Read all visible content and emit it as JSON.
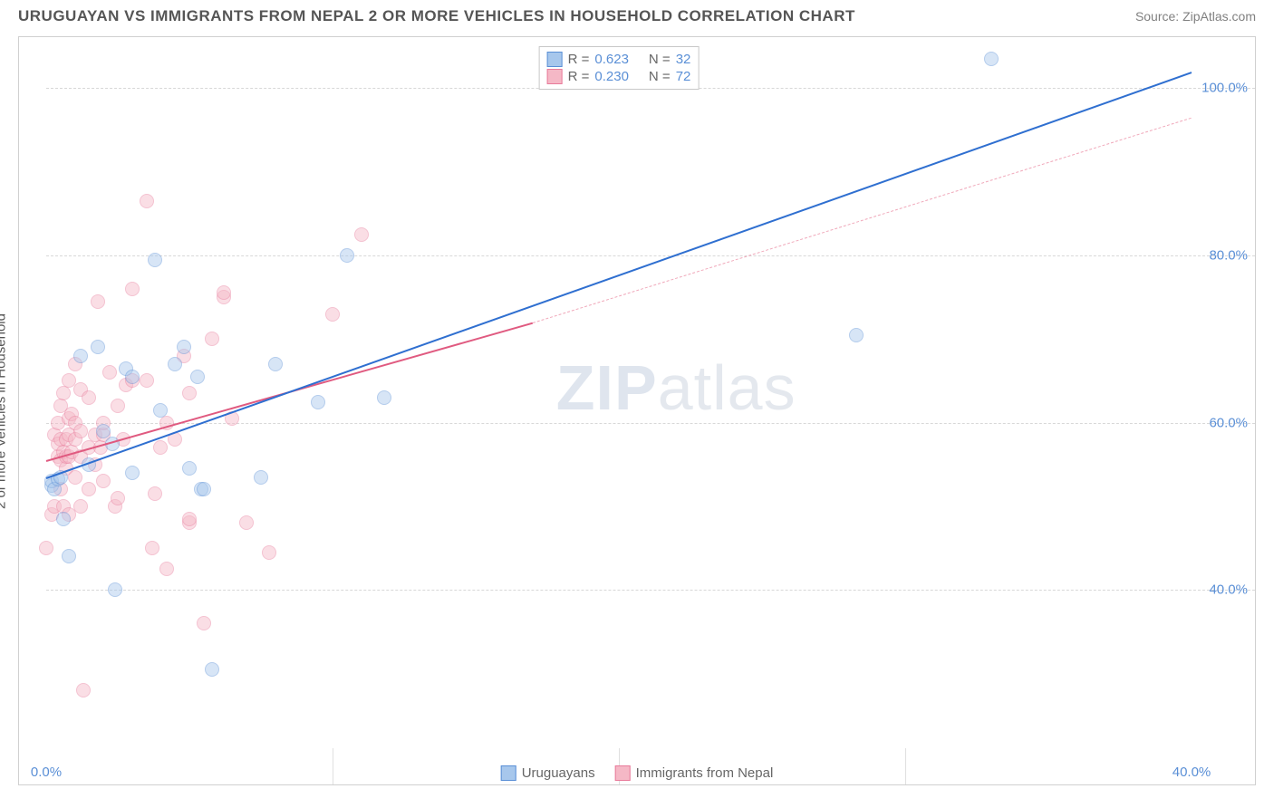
{
  "title": "URUGUAYAN VS IMMIGRANTS FROM NEPAL 2 OR MORE VEHICLES IN HOUSEHOLD CORRELATION CHART",
  "source": "Source: ZipAtlas.com",
  "watermark_bold": "ZIP",
  "watermark_rest": "atlas",
  "y_axis_label": "2 or more Vehicles in Household",
  "chart": {
    "type": "scatter",
    "background_color": "#ffffff",
    "grid_color": "#d8d8d8",
    "axis_text_color": "#5a8fd6",
    "label_text_color": "#555555",
    "xlim": [
      0,
      40
    ],
    "ylim": [
      20,
      105
    ],
    "x_ticks": [
      0,
      40
    ],
    "x_tick_labels": [
      "0.0%",
      "40.0%"
    ],
    "x_ticks_minor": [
      10,
      20,
      30
    ],
    "y_ticks": [
      40,
      60,
      80,
      100
    ],
    "y_tick_labels": [
      "40.0%",
      "60.0%",
      "80.0%",
      "100.0%"
    ],
    "marker_radius": 8,
    "marker_opacity": 0.45,
    "series": [
      {
        "name": "Uruguayans",
        "fill_color": "#a7c7ec",
        "stroke_color": "#5a8fd6",
        "R": "0.623",
        "N": "32",
        "trend": {
          "x1": 0,
          "y1": 53.5,
          "x2": 40,
          "y2": 102,
          "width": 2.5,
          "dashed": false,
          "color": "#2f6fd0"
        },
        "points": [
          [
            0.2,
            52.5
          ],
          [
            0.2,
            53.0
          ],
          [
            0.3,
            52.0
          ],
          [
            0.4,
            53.2
          ],
          [
            0.5,
            53.5
          ],
          [
            0.6,
            48.5
          ],
          [
            0.8,
            44.0
          ],
          [
            1.2,
            68.0
          ],
          [
            1.5,
            55.0
          ],
          [
            1.8,
            69.0
          ],
          [
            2.0,
            59.0
          ],
          [
            2.3,
            57.5
          ],
          [
            2.4,
            40.0
          ],
          [
            2.8,
            66.5
          ],
          [
            3.0,
            54.0
          ],
          [
            3.0,
            65.5
          ],
          [
            3.8,
            79.5
          ],
          [
            4.0,
            61.5
          ],
          [
            4.5,
            67.0
          ],
          [
            4.8,
            69.0
          ],
          [
            5.0,
            54.5
          ],
          [
            5.3,
            65.5
          ],
          [
            5.4,
            52.0
          ],
          [
            5.5,
            52.0
          ],
          [
            5.8,
            30.5
          ],
          [
            7.5,
            53.5
          ],
          [
            8.0,
            67.0
          ],
          [
            9.5,
            62.5
          ],
          [
            10.5,
            80.0
          ],
          [
            11.8,
            63.0
          ],
          [
            28.3,
            70.5
          ],
          [
            33.0,
            103.5
          ]
        ]
      },
      {
        "name": "Immigrants from Nepal",
        "fill_color": "#f5b8c6",
        "stroke_color": "#e87a9a",
        "R": "0.230",
        "N": "72",
        "trend_solid": {
          "x1": 0,
          "y1": 55.5,
          "x2": 17,
          "y2": 72,
          "width": 2.2,
          "color": "#e05a80"
        },
        "trend_dashed": {
          "x1": 17,
          "y1": 72,
          "x2": 40,
          "y2": 96.5,
          "width": 1.2,
          "color": "#f0a8ba"
        },
        "points": [
          [
            0.0,
            45.0
          ],
          [
            0.2,
            49.0
          ],
          [
            0.3,
            50.0
          ],
          [
            0.3,
            58.5
          ],
          [
            0.4,
            56.0
          ],
          [
            0.4,
            57.5
          ],
          [
            0.4,
            60.0
          ],
          [
            0.5,
            52.0
          ],
          [
            0.5,
            55.5
          ],
          [
            0.5,
            58.0
          ],
          [
            0.5,
            62.0
          ],
          [
            0.6,
            50.0
          ],
          [
            0.6,
            56.5
          ],
          [
            0.6,
            63.5
          ],
          [
            0.7,
            54.5
          ],
          [
            0.7,
            56.0
          ],
          [
            0.7,
            58.0
          ],
          [
            0.8,
            49.0
          ],
          [
            0.8,
            56.0
          ],
          [
            0.8,
            58.5
          ],
          [
            0.8,
            60.5
          ],
          [
            0.8,
            65.0
          ],
          [
            0.9,
            56.5
          ],
          [
            0.9,
            61.0
          ],
          [
            1.0,
            53.5
          ],
          [
            1.0,
            58.0
          ],
          [
            1.0,
            60.0
          ],
          [
            1.0,
            67.0
          ],
          [
            1.2,
            50.0
          ],
          [
            1.2,
            56.0
          ],
          [
            1.2,
            59.0
          ],
          [
            1.2,
            64.0
          ],
          [
            1.3,
            28.0
          ],
          [
            1.5,
            52.0
          ],
          [
            1.5,
            57.0
          ],
          [
            1.5,
            63.0
          ],
          [
            1.7,
            55.0
          ],
          [
            1.7,
            58.5
          ],
          [
            1.8,
            74.5
          ],
          [
            1.9,
            57.0
          ],
          [
            2.0,
            53.0
          ],
          [
            2.0,
            58.5
          ],
          [
            2.0,
            60.0
          ],
          [
            2.2,
            66.0
          ],
          [
            2.4,
            50.0
          ],
          [
            2.5,
            51.0
          ],
          [
            2.5,
            62.0
          ],
          [
            2.7,
            58.0
          ],
          [
            2.8,
            64.5
          ],
          [
            3.0,
            65.0
          ],
          [
            3.0,
            76.0
          ],
          [
            3.5,
            86.5
          ],
          [
            3.5,
            65.0
          ],
          [
            3.7,
            45.0
          ],
          [
            3.8,
            51.5
          ],
          [
            4.0,
            57.0
          ],
          [
            4.2,
            42.5
          ],
          [
            4.2,
            60.0
          ],
          [
            4.5,
            58.0
          ],
          [
            4.8,
            68.0
          ],
          [
            5.0,
            48.0
          ],
          [
            5.0,
            48.5
          ],
          [
            5.0,
            63.5
          ],
          [
            5.5,
            36.0
          ],
          [
            5.8,
            70.0
          ],
          [
            6.2,
            75.0
          ],
          [
            6.2,
            75.5
          ],
          [
            6.5,
            60.5
          ],
          [
            7.0,
            48.0
          ],
          [
            7.8,
            44.5
          ],
          [
            10.0,
            73.0
          ],
          [
            11.0,
            82.5
          ]
        ]
      }
    ]
  },
  "stats_box": {
    "rows": [
      {
        "swatch_fill": "#a7c7ec",
        "swatch_stroke": "#5a8fd6",
        "r_label": "R =",
        "r_val": "0.623",
        "n_label": "N =",
        "n_val": "32"
      },
      {
        "swatch_fill": "#f5b8c6",
        "swatch_stroke": "#e87a9a",
        "r_label": "R =",
        "r_val": "0.230",
        "n_label": "N =",
        "n_val": "72"
      }
    ]
  },
  "bottom_legend": [
    {
      "swatch_fill": "#a7c7ec",
      "swatch_stroke": "#5a8fd6",
      "label": "Uruguayans"
    },
    {
      "swatch_fill": "#f5b8c6",
      "swatch_stroke": "#e87a9a",
      "label": "Immigrants from Nepal"
    }
  ]
}
